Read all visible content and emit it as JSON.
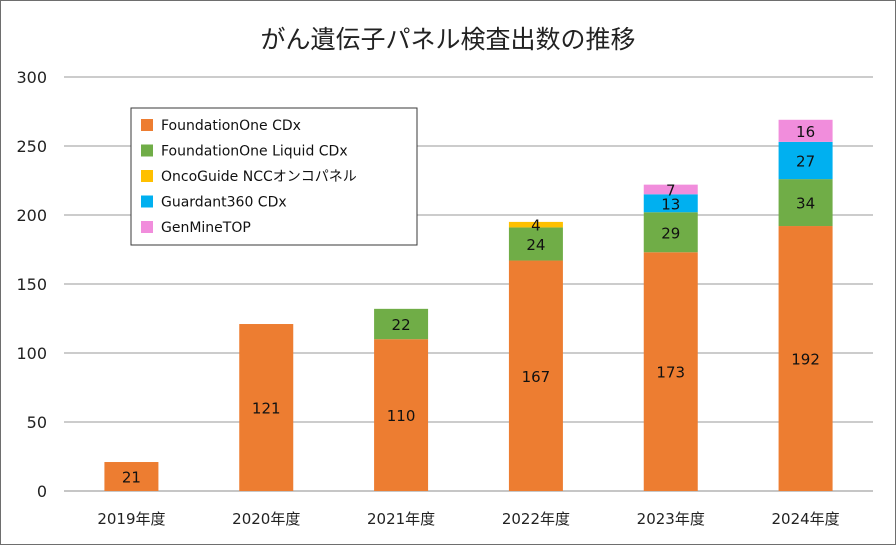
{
  "chart_data": {
    "type": "bar",
    "stacked": true,
    "title": "がん遺伝子パネル検査出数の推移",
    "categories": [
      "2019年度",
      "2020年度",
      "2021年度",
      "2022年度",
      "2023年度",
      "2024年度"
    ],
    "series": [
      {
        "name": "FoundationOne CDx",
        "color": "#ed7d31",
        "values": [
          21,
          121,
          110,
          167,
          173,
          192
        ]
      },
      {
        "name": "FoundationOne Liquid CDx",
        "color": "#70ad47",
        "values": [
          0,
          0,
          22,
          24,
          29,
          34
        ]
      },
      {
        "name": "OncoGuide NCCオンコパネル",
        "color": "#ffc000",
        "values": [
          0,
          0,
          0,
          4,
          0,
          0
        ]
      },
      {
        "name": "Guardant360 CDx",
        "color": "#00b0f0",
        "values": [
          0,
          0,
          0,
          0,
          13,
          27
        ]
      },
      {
        "name": "GenMineTOP",
        "color": "#f18ddc",
        "values": [
          0,
          0,
          0,
          0,
          7,
          16
        ]
      }
    ],
    "ylim": [
      0,
      300
    ],
    "yticks": [
      0,
      50,
      100,
      150,
      200,
      250,
      300
    ],
    "grid": true,
    "legend_position": "top-left"
  }
}
